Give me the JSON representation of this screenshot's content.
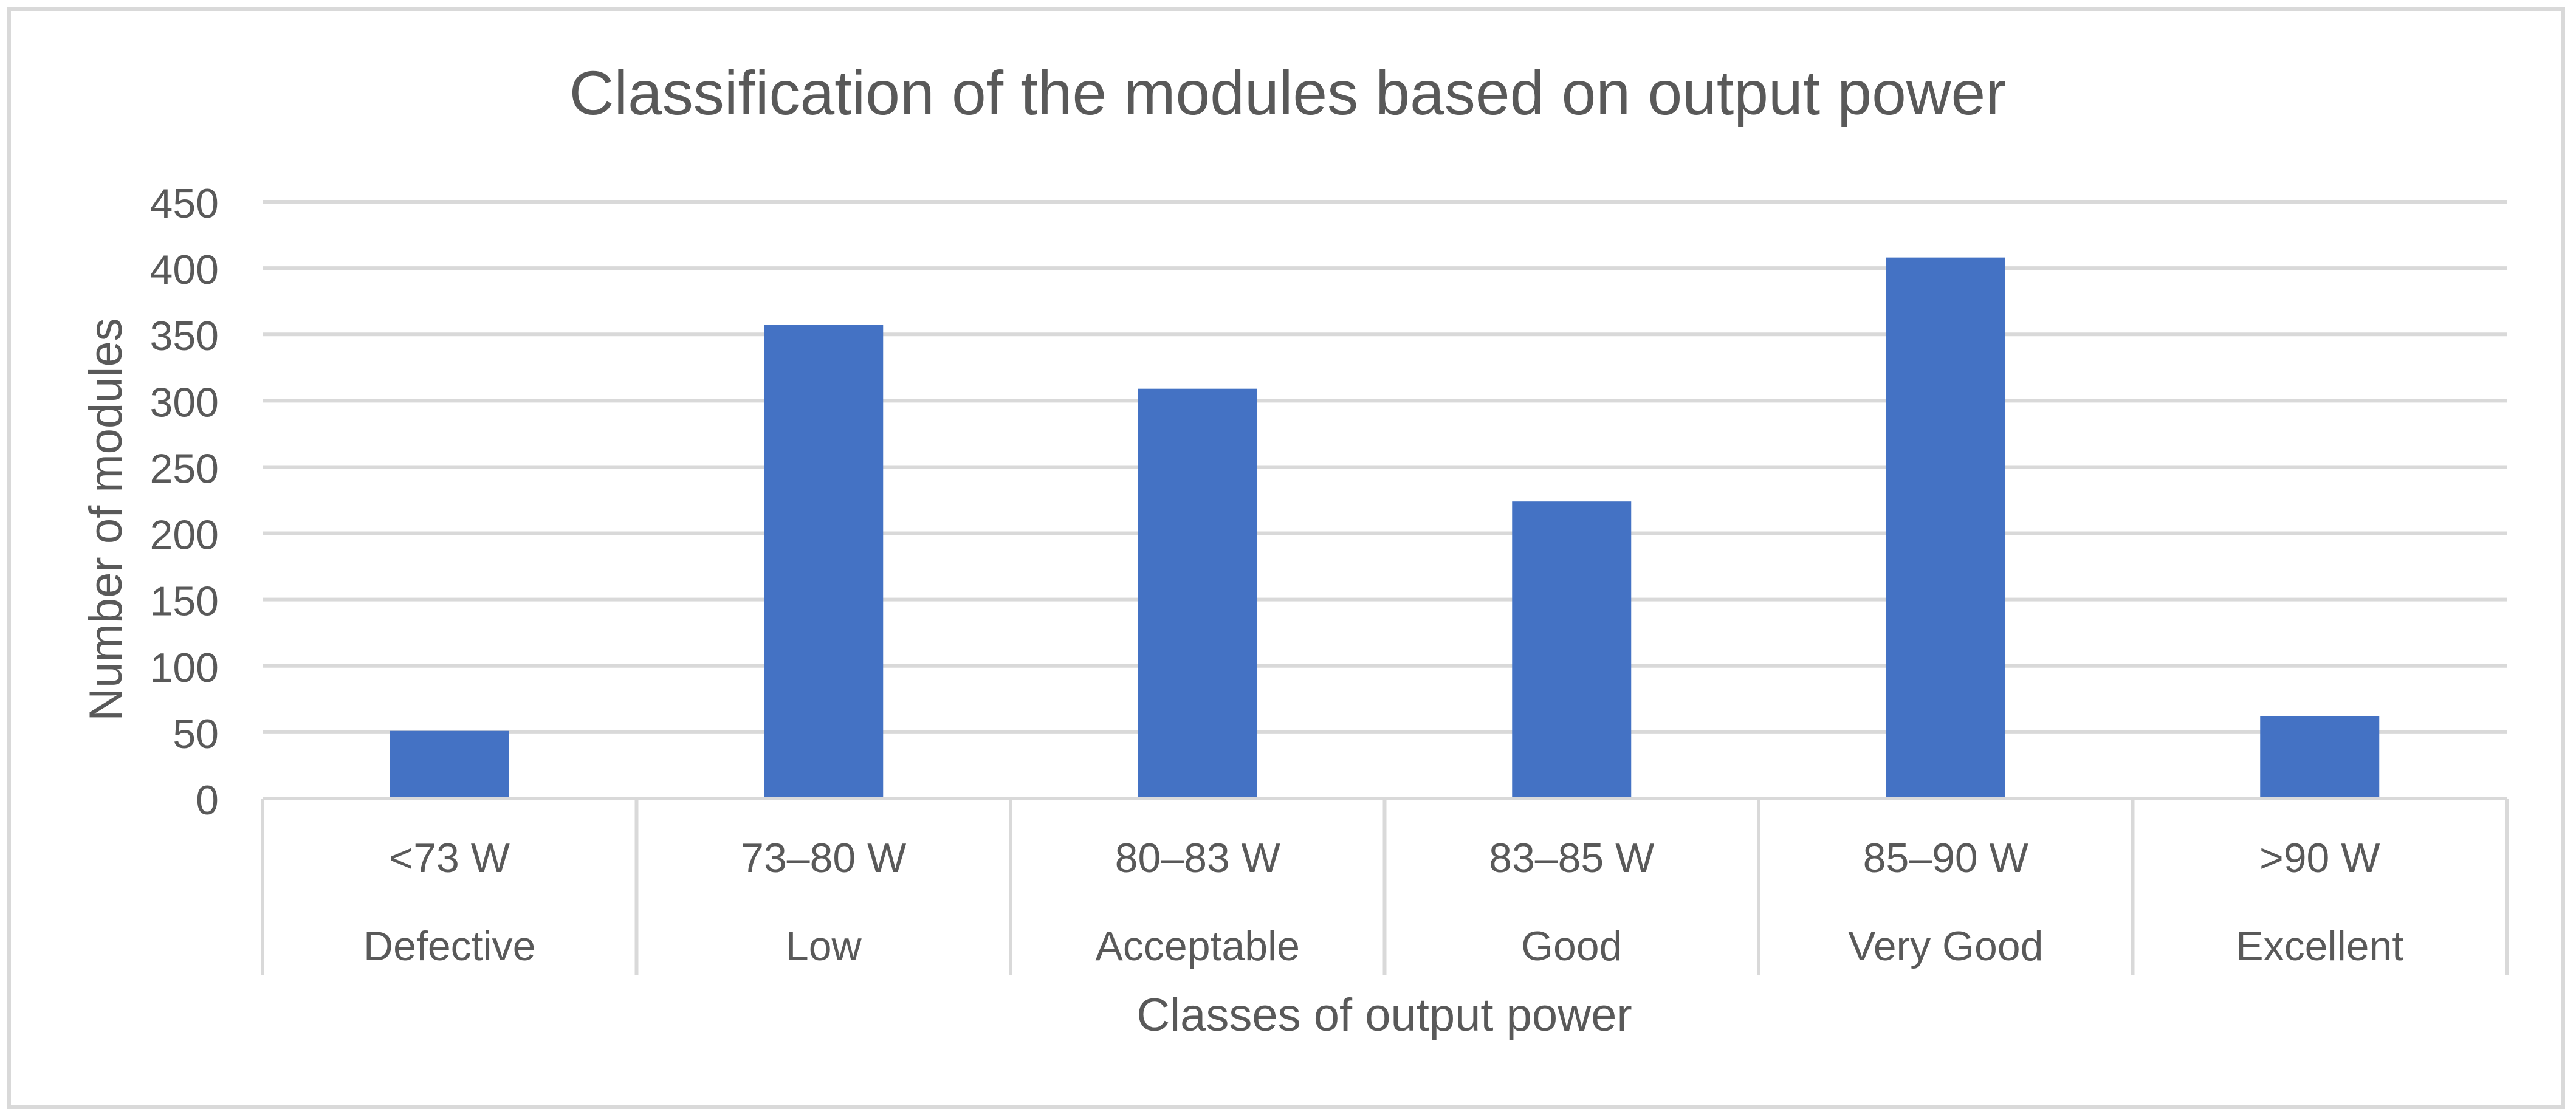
{
  "chart_data": {
    "type": "bar",
    "title": "Classification of the modules based on output power",
    "xlabel": "Classes of output power",
    "ylabel": "Number of modules",
    "categories": [
      {
        "range": "<73 W",
        "class": "Defective"
      },
      {
        "range": "73–80 W",
        "class": "Low"
      },
      {
        "range": "80–83 W",
        "class": "Acceptable"
      },
      {
        "range": "83–85 W",
        "class": "Good"
      },
      {
        "range": "85–90 W",
        "class": "Very Good"
      },
      {
        "range": ">90 W",
        "class": "Excellent"
      }
    ],
    "values": [
      51,
      357,
      309,
      224,
      408,
      62
    ],
    "ylim": [
      0,
      450
    ],
    "yticks": [
      0,
      50,
      100,
      150,
      200,
      250,
      300,
      350,
      400,
      450
    ],
    "grid": true,
    "legend": "none",
    "bar_color": "#4472C4",
    "grid_color": "#d9d9d9",
    "text_color": "#595959"
  }
}
